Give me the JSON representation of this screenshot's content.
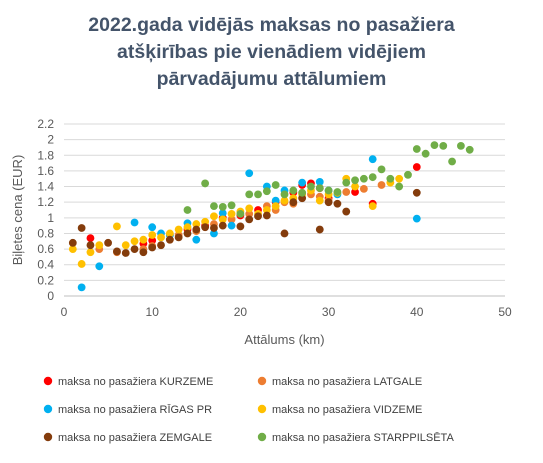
{
  "chart_data": {
    "type": "scatter",
    "title_lines": [
      "2022.gada vidējās maksas no pasažiera",
      "atšķirības pie vienādiem vidējiem",
      "pārvadājumu attālumiem"
    ],
    "xlabel": "Attālums (km)",
    "ylabel": "Biļetes cena (EUR)",
    "xlim": [
      0,
      50
    ],
    "ylim": [
      0,
      2.2
    ],
    "xticks": [
      0,
      10,
      20,
      30,
      40,
      50
    ],
    "yticks": [
      0,
      0.2,
      0.4,
      0.6,
      0.8,
      1,
      1.2,
      1.4,
      1.6,
      1.8,
      2,
      2.2
    ],
    "ytick_labels": [
      "0",
      "0.2",
      "0.4",
      "0.6",
      "0.8",
      "1",
      "1.2",
      "1.4",
      "1.6",
      "1.8",
      "2",
      "2.2"
    ],
    "grid": "horizontal",
    "legend_position": "bottom",
    "series": [
      {
        "name": "maksa no pasažiera KURZEME",
        "color": "#ff0000",
        "points": [
          [
            3,
            0.74
          ],
          [
            9,
            0.67
          ],
          [
            10,
            0.71
          ],
          [
            12,
            0.78
          ],
          [
            14,
            0.85
          ],
          [
            16,
            0.9
          ],
          [
            18,
            1.0
          ],
          [
            20,
            1.03
          ],
          [
            22,
            1.1
          ],
          [
            24,
            1.2
          ],
          [
            26,
            1.32
          ],
          [
            27,
            1.42
          ],
          [
            28,
            1.44
          ],
          [
            29,
            1.38
          ],
          [
            30,
            1.25
          ],
          [
            33,
            1.33
          ],
          [
            35,
            1.18
          ],
          [
            40,
            1.65
          ]
        ]
      },
      {
        "name": "maksa no pasažiera LATGALE",
        "color": "#ed7d31",
        "points": [
          [
            4,
            0.6
          ],
          [
            6,
            0.56
          ],
          [
            9,
            0.6
          ],
          [
            10,
            0.64
          ],
          [
            12,
            0.72
          ],
          [
            13,
            0.78
          ],
          [
            15,
            0.83
          ],
          [
            17,
            0.92
          ],
          [
            19,
            0.98
          ],
          [
            21,
            1.05
          ],
          [
            23,
            1.15
          ],
          [
            24,
            1.1
          ],
          [
            25,
            1.2
          ],
          [
            26,
            1.18
          ],
          [
            28,
            1.3
          ],
          [
            29,
            1.27
          ],
          [
            30,
            1.22
          ],
          [
            32,
            1.33
          ],
          [
            34,
            1.37
          ],
          [
            36,
            1.42
          ]
        ]
      },
      {
        "name": "maksa no pasažiera RĪGAS PR",
        "color": "#00b0f0",
        "points": [
          [
            2,
            0.11
          ],
          [
            4,
            0.38
          ],
          [
            8,
            0.94
          ],
          [
            10,
            0.88
          ],
          [
            11,
            0.8
          ],
          [
            12,
            0.78
          ],
          [
            14,
            0.93
          ],
          [
            15,
            0.72
          ],
          [
            17,
            0.8
          ],
          [
            18,
            1.06
          ],
          [
            19,
            0.9
          ],
          [
            21,
            1.57
          ],
          [
            23,
            1.4
          ],
          [
            24,
            1.22
          ],
          [
            25,
            1.35
          ],
          [
            27,
            1.45
          ],
          [
            29,
            1.46
          ],
          [
            30,
            1.35
          ],
          [
            31,
            1.3
          ],
          [
            35,
            1.75
          ],
          [
            40,
            0.99
          ]
        ]
      },
      {
        "name": "maksa no pasažiera VIDZEME",
        "color": "#ffc000",
        "points": [
          [
            1,
            0.6
          ],
          [
            2,
            0.41
          ],
          [
            3,
            0.56
          ],
          [
            4,
            0.65
          ],
          [
            6,
            0.89
          ],
          [
            7,
            0.65
          ],
          [
            8,
            0.7
          ],
          [
            9,
            0.72
          ],
          [
            10,
            0.78
          ],
          [
            11,
            0.75
          ],
          [
            12,
            0.8
          ],
          [
            13,
            0.85
          ],
          [
            14,
            0.88
          ],
          [
            15,
            0.92
          ],
          [
            16,
            0.95
          ],
          [
            17,
            1.02
          ],
          [
            18,
            0.98
          ],
          [
            19,
            1.05
          ],
          [
            20,
            1.08
          ],
          [
            21,
            1.12
          ],
          [
            22,
            1.05
          ],
          [
            23,
            1.1
          ],
          [
            24,
            1.15
          ],
          [
            25,
            1.22
          ],
          [
            26,
            1.25
          ],
          [
            27,
            1.3
          ],
          [
            28,
            1.35
          ],
          [
            29,
            1.22
          ],
          [
            30,
            1.3
          ],
          [
            31,
            1.32
          ],
          [
            32,
            1.5
          ],
          [
            33,
            1.4
          ],
          [
            35,
            1.15
          ],
          [
            37,
            1.45
          ],
          [
            38,
            1.5
          ]
        ]
      },
      {
        "name": "maksa no pasažiera ZEMGALE",
        "color": "#843c0c",
        "points": [
          [
            1,
            0.68
          ],
          [
            2,
            0.87
          ],
          [
            3,
            0.65
          ],
          [
            5,
            0.68
          ],
          [
            6,
            0.57
          ],
          [
            7,
            0.55
          ],
          [
            8,
            0.6
          ],
          [
            9,
            0.56
          ],
          [
            10,
            0.62
          ],
          [
            11,
            0.65
          ],
          [
            12,
            0.72
          ],
          [
            13,
            0.75
          ],
          [
            14,
            0.8
          ],
          [
            15,
            0.85
          ],
          [
            16,
            0.88
          ],
          [
            17,
            0.87
          ],
          [
            18,
            0.9
          ],
          [
            20,
            0.89
          ],
          [
            21,
            0.98
          ],
          [
            22,
            1.02
          ],
          [
            23,
            1.03
          ],
          [
            25,
            0.8
          ],
          [
            26,
            1.2
          ],
          [
            27,
            1.25
          ],
          [
            29,
            0.85
          ],
          [
            30,
            1.2
          ],
          [
            31,
            1.18
          ],
          [
            32,
            1.08
          ],
          [
            40,
            1.32
          ]
        ]
      },
      {
        "name": "maksa no pasažiera STARPPILSĒTA",
        "color": "#70ad47",
        "points": [
          [
            14,
            1.1
          ],
          [
            16,
            1.44
          ],
          [
            17,
            1.15
          ],
          [
            18,
            1.14
          ],
          [
            19,
            1.16
          ],
          [
            20,
            1.05
          ],
          [
            21,
            1.3
          ],
          [
            22,
            1.3
          ],
          [
            23,
            1.34
          ],
          [
            24,
            1.42
          ],
          [
            25,
            1.3
          ],
          [
            26,
            1.35
          ],
          [
            27,
            1.32
          ],
          [
            28,
            1.4
          ],
          [
            29,
            1.38
          ],
          [
            30,
            1.35
          ],
          [
            31,
            1.33
          ],
          [
            32,
            1.45
          ],
          [
            33,
            1.48
          ],
          [
            34,
            1.5
          ],
          [
            35,
            1.52
          ],
          [
            36,
            1.62
          ],
          [
            37,
            1.5
          ],
          [
            38,
            1.4
          ],
          [
            39,
            1.55
          ],
          [
            40,
            1.88
          ],
          [
            41,
            1.82
          ],
          [
            42,
            1.93
          ],
          [
            43,
            1.92
          ],
          [
            44,
            1.72
          ],
          [
            45,
            1.92
          ],
          [
            46,
            1.87
          ]
        ]
      }
    ]
  }
}
